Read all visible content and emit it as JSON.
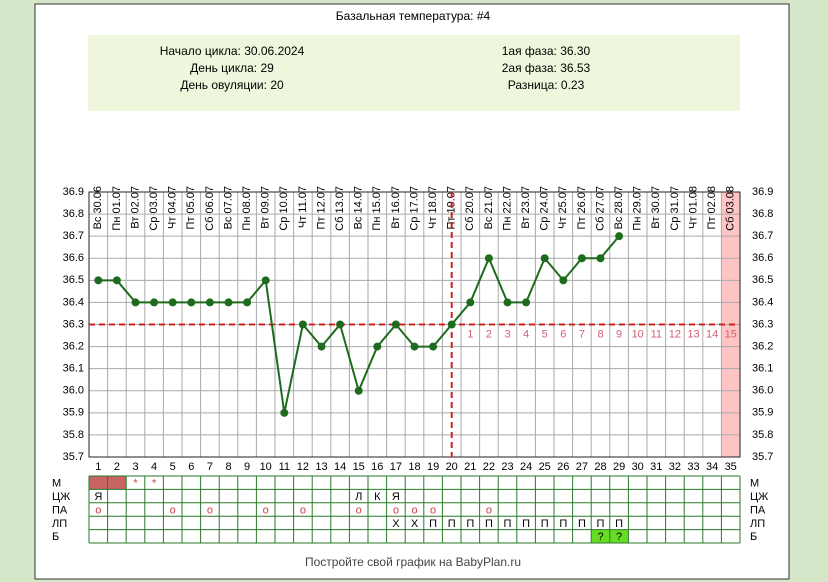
{
  "chart_data": {
    "type": "line",
    "title": "Базальная температура: #4",
    "info_left": [
      {
        "label": "Начало цикла:",
        "value": "30.06.2024"
      },
      {
        "label": "День цикла:",
        "value": 29
      },
      {
        "label": "День овуляции:",
        "value": 20
      }
    ],
    "info_right": [
      {
        "label": "1ая фаза:",
        "value": "36.30"
      },
      {
        "label": "2ая фаза:",
        "value": "36.53"
      },
      {
        "label": "Разница:",
        "value": "0.23"
      }
    ],
    "categories": [
      "Вс 30.06",
      "Пн 01.07",
      "Вт 02.07",
      "Ср 03.07",
      "Чт 04.07",
      "Пт 05.07",
      "Сб 06.07",
      "Вс 07.07",
      "Пн 08.07",
      "Вт 09.07",
      "Ср 10.07",
      "Чт 11.07",
      "Пт 12.07",
      "Сб 13.07",
      "Вс 14.07",
      "Пн 15.07",
      "Вт 16.07",
      "Ср 17.07",
      "Чт 18.07",
      "Пт 19.07",
      "Сб 20.07",
      "Вс 21.07",
      "Пн 22.07",
      "Вт 23.07",
      "Ср 24.07",
      "Чт 25.07",
      "Пт 26.07",
      "Сб 27.07",
      "Вс 28.07",
      "Пн 29.07",
      "Вт 30.07",
      "Ср 31.07",
      "Чт 01.08",
      "Пт 02.08",
      "Сб 03.08"
    ],
    "days": [
      1,
      2,
      3,
      4,
      5,
      6,
      7,
      8,
      9,
      10,
      11,
      12,
      13,
      14,
      15,
      16,
      17,
      18,
      19,
      20,
      21,
      22,
      23,
      24,
      25,
      26,
      27,
      28,
      29,
      30,
      31,
      32,
      33,
      34,
      35
    ],
    "values": [
      36.5,
      36.5,
      36.4,
      36.4,
      36.4,
      36.4,
      36.4,
      36.4,
      36.4,
      36.5,
      35.9,
      36.3,
      36.2,
      36.3,
      36.0,
      36.2,
      36.3,
      36.2,
      36.2,
      36.3,
      36.4,
      36.6,
      36.4,
      36.4,
      36.6,
      36.5,
      36.6,
      36.6,
      36.7,
      null,
      null,
      null,
      null,
      null,
      null
    ],
    "color": "#1e6b1e",
    "coverline": 36.3,
    "line_marker_color": "#d02020",
    "phase2_days": [
      1,
      2,
      3,
      4,
      5,
      6,
      7,
      8,
      9,
      10,
      11,
      12,
      13,
      14,
      15
    ],
    "highlight_days": [
      35
    ],
    "highlight_color": "#ffc4c4",
    "ylim": [
      35.7,
      36.9
    ],
    "yticks": [
      36.9,
      36.8,
      36.7,
      36.6,
      36.5,
      36.4,
      36.3,
      36.2,
      36.1,
      {
        "value": 36.0,
        "label": "36.0"
      },
      35.9,
      35.8,
      35.7
    ],
    "grid": true,
    "rows": [
      {
        "label": "М",
        "filled_days": [
          1,
          2
        ],
        "fill": "#c86464",
        "cells": [
          null,
          null,
          "*",
          "*",
          null,
          null,
          null,
          null,
          null,
          null,
          null,
          null,
          null,
          null,
          null,
          null,
          null,
          null,
          null,
          null,
          null,
          null,
          null,
          null,
          null,
          null,
          null,
          null,
          null,
          null,
          null,
          null,
          null,
          null,
          null
        ],
        "text_color": "#d04040"
      },
      {
        "label": "ЦЖ",
        "cells": [
          "Я",
          null,
          null,
          null,
          null,
          null,
          null,
          null,
          null,
          null,
          null,
          null,
          null,
          null,
          "Л",
          "К",
          "Я",
          null,
          null,
          null,
          null,
          null,
          null,
          null,
          null,
          null,
          null,
          null,
          null,
          null,
          null,
          null,
          null,
          null,
          null
        ],
        "text_color": "#000"
      },
      {
        "label": "ПА",
        "cells": [
          "о",
          null,
          null,
          null,
          "о",
          null,
          "о",
          null,
          null,
          "о",
          null,
          "о",
          null,
          null,
          "о",
          null,
          "о",
          "о",
          "о",
          null,
          null,
          "о",
          null,
          null,
          null,
          null,
          null,
          null,
          null,
          null,
          null,
          null,
          null,
          null,
          null
        ],
        "text_color": "#d04040"
      },
      {
        "label": "ЛП",
        "cells": [
          null,
          null,
          null,
          null,
          null,
          null,
          null,
          null,
          null,
          null,
          null,
          null,
          null,
          null,
          null,
          null,
          "Х",
          "Х",
          "П",
          "П",
          "П",
          "П",
          "П",
          "П",
          "П",
          "П",
          "П",
          "П",
          "П",
          null,
          null,
          null,
          null,
          null,
          null
        ],
        "text_color": "#000"
      },
      {
        "label": "Б",
        "cells": [
          null,
          null,
          null,
          null,
          null,
          null,
          null,
          null,
          null,
          null,
          null,
          null,
          null,
          null,
          null,
          null,
          null,
          null,
          null,
          null,
          null,
          null,
          null,
          null,
          null,
          null,
          null,
          "?",
          "?",
          null,
          null,
          null,
          null,
          null,
          null
        ],
        "text_color": "#000",
        "cell_fill": "#66dd22"
      }
    ],
    "footer": "Постройте свой график на BabyPlan.ru"
  }
}
